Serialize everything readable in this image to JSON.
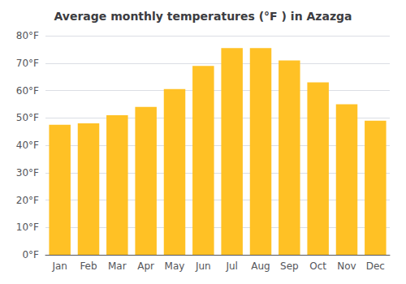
{
  "chart_data": {
    "type": "bar",
    "title": "Average monthly temperatures (°F ) in Azazga",
    "categories": [
      "Jan",
      "Feb",
      "Mar",
      "Apr",
      "May",
      "Jun",
      "Jul",
      "Aug",
      "Sep",
      "Oct",
      "Nov",
      "Dec"
    ],
    "values": [
      47.5,
      48.0,
      51.0,
      54.0,
      60.5,
      69.0,
      75.5,
      75.5,
      71.0,
      63.0,
      55.0,
      49.0
    ],
    "color": "#FFC125",
    "ylim": [
      0,
      80
    ],
    "yticks": [
      {
        "value": 0,
        "label": "0°F"
      },
      {
        "value": 10,
        "label": "10°F"
      },
      {
        "value": 20,
        "label": "20°F"
      },
      {
        "value": 30,
        "label": "30°F"
      },
      {
        "value": 40,
        "label": "40°F"
      },
      {
        "value": 50,
        "label": "50°F"
      },
      {
        "value": 60,
        "label": "60°F"
      },
      {
        "value": 70,
        "label": "70°F"
      },
      {
        "value": 80,
        "label": "80°F"
      }
    ],
    "grid": true
  }
}
